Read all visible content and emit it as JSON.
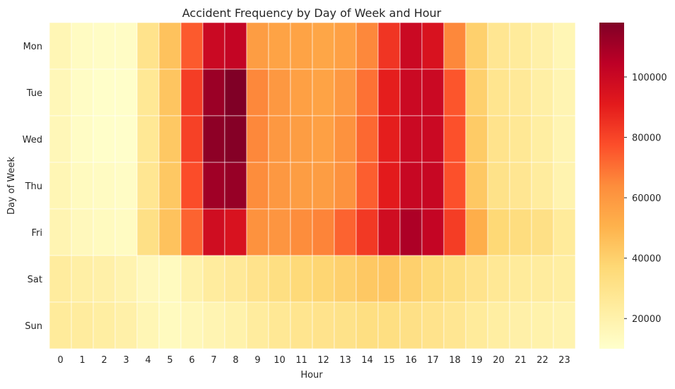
{
  "chart_data": {
    "type": "heatmap",
    "title": "Accident Frequency by Day of Week and Hour",
    "xlabel": "Hour",
    "ylabel": "Day of Week",
    "x_categories": [
      "0",
      "1",
      "2",
      "3",
      "4",
      "5",
      "6",
      "7",
      "8",
      "9",
      "10",
      "11",
      "12",
      "13",
      "14",
      "15",
      "16",
      "17",
      "18",
      "19",
      "20",
      "21",
      "22",
      "23"
    ],
    "y_categories": [
      "Mon",
      "Tue",
      "Wed",
      "Thu",
      "Fri",
      "Sat",
      "Sun"
    ],
    "values": [
      [
        17000,
        13000,
        12000,
        12000,
        30000,
        45000,
        75000,
        100000,
        102000,
        58000,
        56000,
        56000,
        55000,
        57000,
        65000,
        84000,
        100000,
        95000,
        65000,
        40000,
        28000,
        25000,
        21000,
        17000
      ],
      [
        16000,
        12000,
        11000,
        11000,
        27000,
        44000,
        82000,
        112000,
        118000,
        65000,
        60000,
        57000,
        56000,
        60000,
        70000,
        90000,
        100000,
        100000,
        76000,
        40000,
        29000,
        26000,
        22000,
        18000
      ],
      [
        16000,
        12000,
        11000,
        10500,
        27000,
        43000,
        81000,
        115000,
        117000,
        65000,
        60000,
        58000,
        57000,
        62000,
        72000,
        90000,
        100000,
        100000,
        77000,
        42000,
        30000,
        27000,
        23000,
        18000
      ],
      [
        17000,
        14000,
        13000,
        12000,
        28000,
        43000,
        78000,
        111000,
        113000,
        64000,
        60000,
        58000,
        58000,
        62000,
        74000,
        91000,
        101000,
        101000,
        77000,
        43000,
        31000,
        28000,
        24000,
        19000
      ],
      [
        18000,
        15000,
        14000,
        13000,
        32000,
        45000,
        73000,
        98000,
        95000,
        62000,
        61000,
        64000,
        66000,
        73000,
        83000,
        98000,
        108000,
        102000,
        82000,
        52000,
        37000,
        34000,
        32000,
        25000
      ],
      [
        24000,
        22000,
        21000,
        19000,
        15000,
        14000,
        20000,
        24000,
        26000,
        30000,
        33000,
        36000,
        38000,
        40000,
        43000,
        44000,
        40000,
        36000,
        33000,
        30000,
        27000,
        25000,
        24000,
        23000
      ],
      [
        25000,
        24000,
        23000,
        21000,
        17000,
        14000,
        16000,
        18000,
        20000,
        24000,
        27000,
        29000,
        30000,
        31000,
        33000,
        33000,
        32000,
        30000,
        28000,
        25000,
        23000,
        21000,
        20000,
        19000
      ]
    ],
    "colormap": "YlOrRd",
    "vmin": 10000,
    "vmax": 118000,
    "colorbar_ticks": [
      "20000",
      "40000",
      "60000",
      "80000",
      "100000"
    ],
    "grid": true,
    "colors": {
      "grid_lines": "#ffffff",
      "text": "#262626"
    }
  }
}
